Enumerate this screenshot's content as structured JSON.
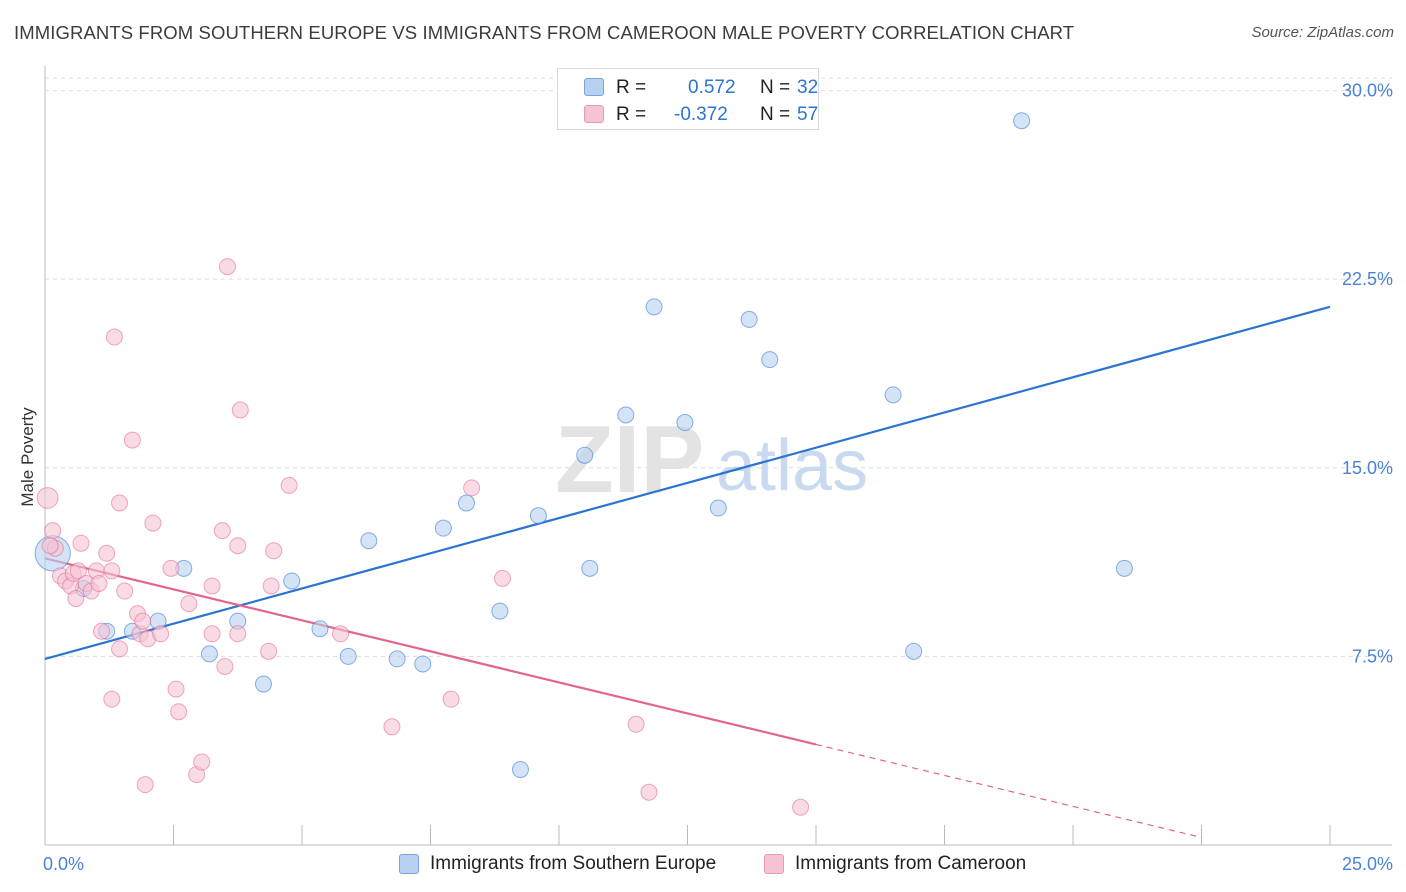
{
  "colors": {
    "blue": "#2c74d0",
    "blue_fill": "#b9d1f1",
    "pink": "#e2648f",
    "pink_fill": "#f5c3d4",
    "tick_label": "#4a83d4",
    "grid": "#dcdcdc",
    "watermark": "#e3e3e3",
    "watermark_accent": "#c9daf0"
  },
  "chart_data": {
    "type": "scatter",
    "title": "IMMIGRANTS FROM SOUTHERN EUROPE VS IMMIGRANTS FROM CAMEROON MALE POVERTY CORRELATION CHART",
    "source": "Source: ZipAtlas.com",
    "xlabel": "",
    "ylabel": "Male Poverty",
    "xlim": [
      0,
      25
    ],
    "ylim": [
      0,
      30.5
    ],
    "x_tick_labels": {
      "min": "0.0%",
      "max": "25.0%"
    },
    "y_ticks": [
      7.5,
      15.0,
      22.5,
      30.0
    ],
    "y_tick_labels": [
      "7.5%",
      "15.0%",
      "22.5%",
      "30.0%"
    ],
    "grid": true,
    "watermark": {
      "part1": "ZIP",
      "part2": "atlas"
    },
    "legend_position": "top-center",
    "series": [
      {
        "name": "Immigrants from Southern Europe",
        "color": "blue",
        "R_label": "R =",
        "R": "0.572",
        "N_label": "N =",
        "N": "32",
        "trend": {
          "x0": 0,
          "y0": 7.4,
          "x1": 25,
          "y1": 21.4
        },
        "points": [
          [
            0.15,
            11.6,
            2.2
          ],
          [
            0.75,
            10.2,
            1
          ],
          [
            1.2,
            8.5,
            1
          ],
          [
            1.7,
            8.5,
            1
          ],
          [
            2.2,
            8.9,
            1
          ],
          [
            2.7,
            11.0,
            1
          ],
          [
            3.2,
            7.6,
            1
          ],
          [
            3.75,
            8.9,
            1
          ],
          [
            4.25,
            6.4,
            1
          ],
          [
            4.8,
            10.5,
            1
          ],
          [
            5.35,
            8.6,
            1
          ],
          [
            5.9,
            7.5,
            1
          ],
          [
            6.3,
            12.1,
            1
          ],
          [
            6.85,
            7.4,
            1
          ],
          [
            7.35,
            7.2,
            1
          ],
          [
            7.75,
            12.6,
            1
          ],
          [
            8.2,
            13.6,
            1
          ],
          [
            8.85,
            9.3,
            1
          ],
          [
            9.25,
            3.0,
            1
          ],
          [
            9.6,
            13.1,
            1
          ],
          [
            10.5,
            15.5,
            1
          ],
          [
            10.6,
            11.0,
            1
          ],
          [
            11.3,
            17.1,
            1
          ],
          [
            11.85,
            21.4,
            1
          ],
          [
            12.45,
            16.8,
            1
          ],
          [
            13.1,
            13.4,
            1
          ],
          [
            13.7,
            20.9,
            1
          ],
          [
            14.1,
            19.3,
            1
          ],
          [
            16.5,
            17.9,
            1
          ],
          [
            16.9,
            7.7,
            1
          ],
          [
            19.0,
            28.8,
            1
          ],
          [
            21.0,
            11.0,
            1
          ]
        ]
      },
      {
        "name": "Immigrants from Cameroon",
        "color": "pink",
        "R_label": "R =",
        "R": "-0.372",
        "N_label": "N =",
        "N": "57",
        "trend": {
          "x0": 0,
          "y0": 11.4,
          "x1": 15.0,
          "y1": 4.0,
          "dash_x1": 22.5,
          "dash_y1": 0.3
        },
        "points": [
          [
            0.05,
            13.8,
            1.3
          ],
          [
            0.15,
            12.5,
            1
          ],
          [
            0.2,
            11.8,
            1
          ],
          [
            0.3,
            10.7,
            1
          ],
          [
            0.4,
            10.5,
            1
          ],
          [
            0.5,
            10.3,
            1
          ],
          [
            0.55,
            10.8,
            1
          ],
          [
            0.6,
            9.8,
            1
          ],
          [
            0.65,
            10.9,
            1
          ],
          [
            0.7,
            12.0,
            1
          ],
          [
            0.8,
            10.4,
            1
          ],
          [
            0.9,
            10.1,
            1
          ],
          [
            1.0,
            10.9,
            1
          ],
          [
            1.05,
            10.4,
            1
          ],
          [
            1.1,
            8.5,
            1
          ],
          [
            1.2,
            11.6,
            1
          ],
          [
            1.3,
            10.9,
            1
          ],
          [
            1.3,
            5.8,
            1
          ],
          [
            1.35,
            20.2,
            1
          ],
          [
            1.45,
            13.6,
            1
          ],
          [
            1.45,
            7.8,
            1
          ],
          [
            1.55,
            10.1,
            1
          ],
          [
            1.7,
            16.1,
            1
          ],
          [
            1.8,
            9.2,
            1
          ],
          [
            1.85,
            8.4,
            1
          ],
          [
            1.9,
            8.9,
            1
          ],
          [
            1.95,
            2.4,
            1
          ],
          [
            2.0,
            8.2,
            1
          ],
          [
            2.1,
            12.8,
            1
          ],
          [
            2.25,
            8.4,
            1
          ],
          [
            2.45,
            11.0,
            1
          ],
          [
            2.55,
            6.2,
            1
          ],
          [
            2.6,
            5.3,
            1
          ],
          [
            2.8,
            9.6,
            1
          ],
          [
            2.95,
            2.8,
            1
          ],
          [
            3.05,
            3.3,
            1
          ],
          [
            3.25,
            10.3,
            1
          ],
          [
            3.25,
            8.4,
            1
          ],
          [
            3.45,
            12.5,
            1
          ],
          [
            3.5,
            7.1,
            1
          ],
          [
            3.55,
            23.0,
            1
          ],
          [
            3.75,
            11.9,
            1
          ],
          [
            3.75,
            8.4,
            1
          ],
          [
            3.8,
            17.3,
            1
          ],
          [
            4.35,
            7.7,
            1
          ],
          [
            4.4,
            10.3,
            1
          ],
          [
            4.45,
            11.7,
            1
          ],
          [
            4.75,
            14.3,
            1
          ],
          [
            5.75,
            8.4,
            1
          ],
          [
            6.75,
            4.7,
            1
          ],
          [
            7.9,
            5.8,
            1
          ],
          [
            8.3,
            14.2,
            1
          ],
          [
            8.9,
            10.6,
            1
          ],
          [
            11.5,
            4.8,
            1
          ],
          [
            11.75,
            2.1,
            1
          ],
          [
            14.7,
            1.5,
            1
          ],
          [
            0.1,
            11.9,
            1
          ]
        ]
      }
    ]
  }
}
